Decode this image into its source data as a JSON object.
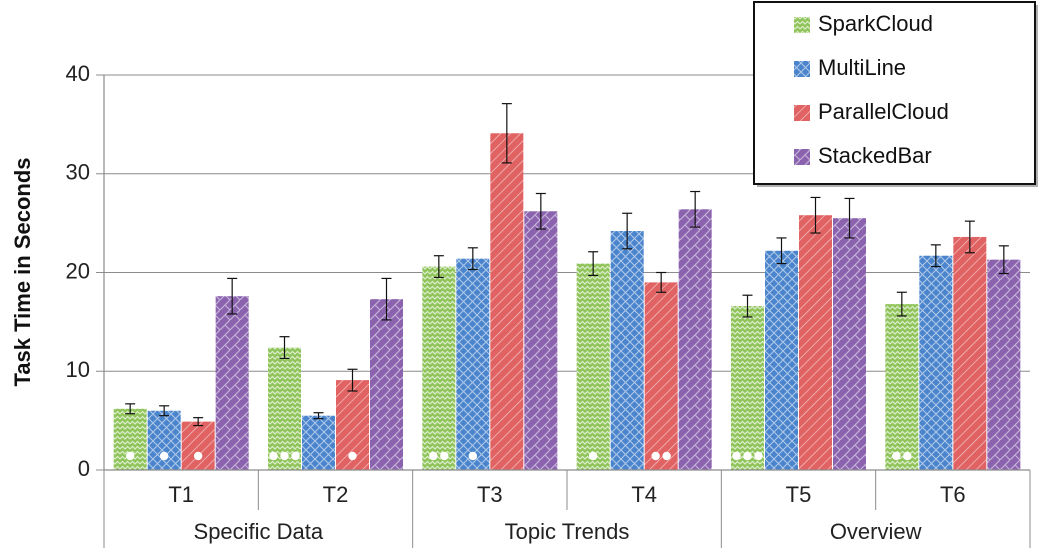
{
  "chart_data": {
    "type": "bar",
    "title": "",
    "ylabel": "Task Time in Seconds",
    "xlabel": "",
    "ylim": [
      0,
      40
    ],
    "yticks": [
      0,
      10,
      20,
      30,
      40
    ],
    "grid": true,
    "legend_position": "top-right",
    "categories": [
      "T1",
      "T2",
      "T3",
      "T4",
      "T5",
      "T6"
    ],
    "groups": [
      {
        "label": "Specific Data",
        "categories": [
          "T1",
          "T2"
        ]
      },
      {
        "label": "Topic Trends",
        "categories": [
          "T3",
          "T4"
        ]
      },
      {
        "label": "Overview",
        "categories": [
          "T5",
          "T6"
        ]
      }
    ],
    "series": [
      {
        "name": "SparkCloud",
        "color": "#8fc45a",
        "pattern": "zigzag",
        "values": [
          6.2,
          12.4,
          20.6,
          20.9,
          16.6,
          16.8
        ],
        "errors": [
          0.5,
          1.1,
          1.1,
          1.2,
          1.1,
          1.2
        ],
        "dots": [
          1,
          3,
          2,
          1,
          3,
          2
        ]
      },
      {
        "name": "MultiLine",
        "color": "#4a84cc",
        "pattern": "crosshatch",
        "values": [
          6.0,
          5.5,
          21.4,
          24.2,
          22.2,
          21.7
        ],
        "errors": [
          0.5,
          0.3,
          1.1,
          1.8,
          1.3,
          1.1
        ],
        "dots": [
          1,
          0,
          1,
          0,
          0,
          0
        ]
      },
      {
        "name": "ParallelCloud",
        "color": "#e06262",
        "pattern": "diagonal",
        "values": [
          4.9,
          9.1,
          34.1,
          19.0,
          25.8,
          23.6
        ],
        "errors": [
          0.4,
          1.1,
          3.0,
          1.0,
          1.8,
          1.6
        ],
        "dots": [
          1,
          1,
          0,
          2,
          0,
          0
        ]
      },
      {
        "name": "StackedBar",
        "color": "#8a62ae",
        "pattern": "diagonal-brick",
        "values": [
          17.6,
          17.3,
          26.2,
          26.4,
          25.5,
          21.3
        ],
        "errors": [
          1.8,
          2.1,
          1.8,
          1.8,
          2.0,
          1.4
        ],
        "dots": [
          0,
          0,
          0,
          0,
          0,
          0
        ]
      }
    ]
  }
}
